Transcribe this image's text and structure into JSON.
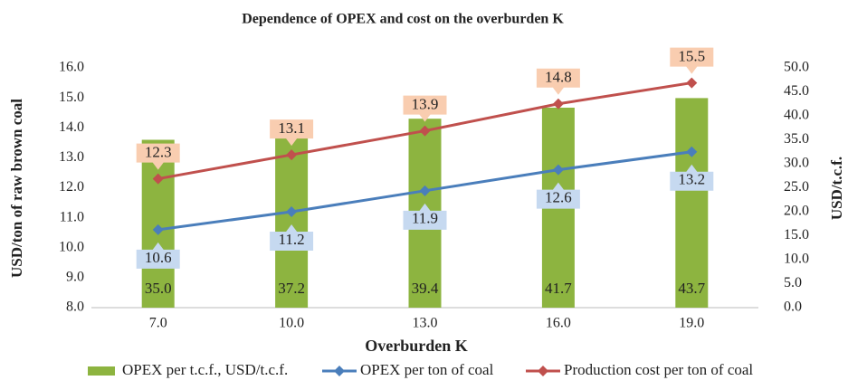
{
  "chart_data": {
    "type": "bar_line",
    "title": "Dependence of OPEX and cost on the overburden K",
    "x_label": "Overburden K",
    "y_label": "USD/ton of  raw brown coal",
    "y2_label": "USD/t.c.f.",
    "categories": [
      "7.0",
      "10.0",
      "13.0",
      "16.0",
      "19.0"
    ],
    "ylim": [
      8,
      16
    ],
    "yticks": [
      {
        "value": 8,
        "label": "8.0"
      },
      {
        "value": 9,
        "label": "9.0"
      },
      {
        "value": 10,
        "label": "10.0"
      },
      {
        "value": 11,
        "label": "11.0"
      },
      {
        "value": 12,
        "label": "12.0"
      },
      {
        "value": 13,
        "label": "13.0"
      },
      {
        "value": 14,
        "label": "14.0"
      },
      {
        "value": 15,
        "label": "15.0"
      },
      {
        "value": 16,
        "label": "16.0"
      }
    ],
    "y2lim": [
      0,
      50
    ],
    "y2ticks": [
      {
        "value": 0,
        "label": "0.0"
      },
      {
        "value": 5,
        "label": "5.0"
      },
      {
        "value": 10,
        "label": "10.0"
      },
      {
        "value": 15,
        "label": "15.0"
      },
      {
        "value": 20,
        "label": "20.0"
      },
      {
        "value": 25,
        "label": "25.0"
      },
      {
        "value": 30,
        "label": "30.0"
      },
      {
        "value": 35,
        "label": "35.0"
      },
      {
        "value": 40,
        "label": "40.0"
      },
      {
        "value": 45,
        "label": "45.0"
      },
      {
        "value": 50,
        "label": "50.0"
      }
    ],
    "series": [
      {
        "name": "OPEX per t.c.f., USD/t.c.f.",
        "type": "bar",
        "axis": "y2",
        "color": "#8db440",
        "values": [
          35.0,
          37.2,
          39.4,
          41.7,
          43.7
        ],
        "value_labels": [
          "35.0",
          "37.2",
          "39.4",
          "41.7",
          "43.7"
        ]
      },
      {
        "name": "OPEX per ton of coal",
        "type": "line",
        "axis": "y",
        "color": "#4a7ebb",
        "label_color": "#c6d9f0",
        "values": [
          10.6,
          11.2,
          11.9,
          12.6,
          13.2
        ]
      },
      {
        "name": "Production cost per ton of coal",
        "type": "line",
        "axis": "y",
        "color": "#c0504d",
        "label_color": "#f9cdb0",
        "values": [
          12.3,
          13.1,
          13.9,
          14.8,
          15.5
        ]
      }
    ]
  }
}
